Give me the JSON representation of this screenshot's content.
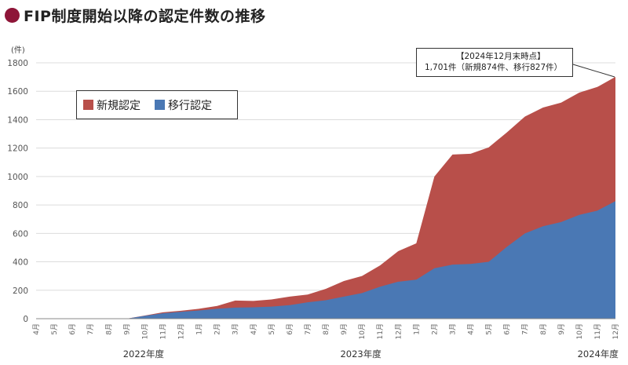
{
  "page": {
    "title": "FIP制度開始以降の認定件数の推移"
  },
  "callout": {
    "line1": "【2024年12月末時点】",
    "line2": "1,701件（新規874件、移行827件）"
  },
  "chart_data": {
    "type": "area",
    "stacked": true,
    "title": "FIP制度開始以降の認定件数の推移",
    "ylabel": "(件)",
    "xlabel": "",
    "ylim": [
      0,
      1800
    ],
    "yticks": [
      0,
      200,
      400,
      600,
      800,
      1000,
      1200,
      1400,
      1600,
      1800
    ],
    "grid": true,
    "legend_position": "top-left",
    "categories": [
      "4月",
      "5月",
      "6月",
      "7月",
      "8月",
      "9月",
      "10月",
      "11月",
      "12月",
      "1月",
      "2月",
      "3月",
      "4月",
      "5月",
      "6月",
      "7月",
      "8月",
      "9月",
      "10月",
      "11月",
      "12月",
      "1月",
      "2月",
      "3月",
      "4月",
      "5月",
      "6月",
      "7月",
      "8月",
      "9月",
      "10月",
      "11月",
      "12月"
    ],
    "year_labels": [
      "2022年度",
      "2023年度",
      "2024年度"
    ],
    "series": [
      {
        "name": "移行認定",
        "color": "#4a78b4",
        "values": [
          0,
          0,
          0,
          0,
          0,
          0,
          20,
          38,
          48,
          58,
          70,
          78,
          80,
          85,
          95,
          115,
          130,
          155,
          180,
          225,
          260,
          275,
          355,
          380,
          385,
          400,
          505,
          600,
          650,
          680,
          730,
          760,
          827
        ]
      },
      {
        "name": "新規認定",
        "color": "#b84f4a",
        "values": [
          0,
          0,
          0,
          0,
          0,
          0,
          2,
          7,
          8,
          12,
          20,
          50,
          45,
          50,
          60,
          55,
          80,
          110,
          120,
          150,
          215,
          255,
          645,
          775,
          775,
          805,
          805,
          822,
          835,
          840,
          860,
          870,
          874
        ]
      }
    ]
  },
  "colors": {
    "accent": "#8e1538",
    "new": "#b84f4a",
    "migration": "#4a78b4"
  }
}
